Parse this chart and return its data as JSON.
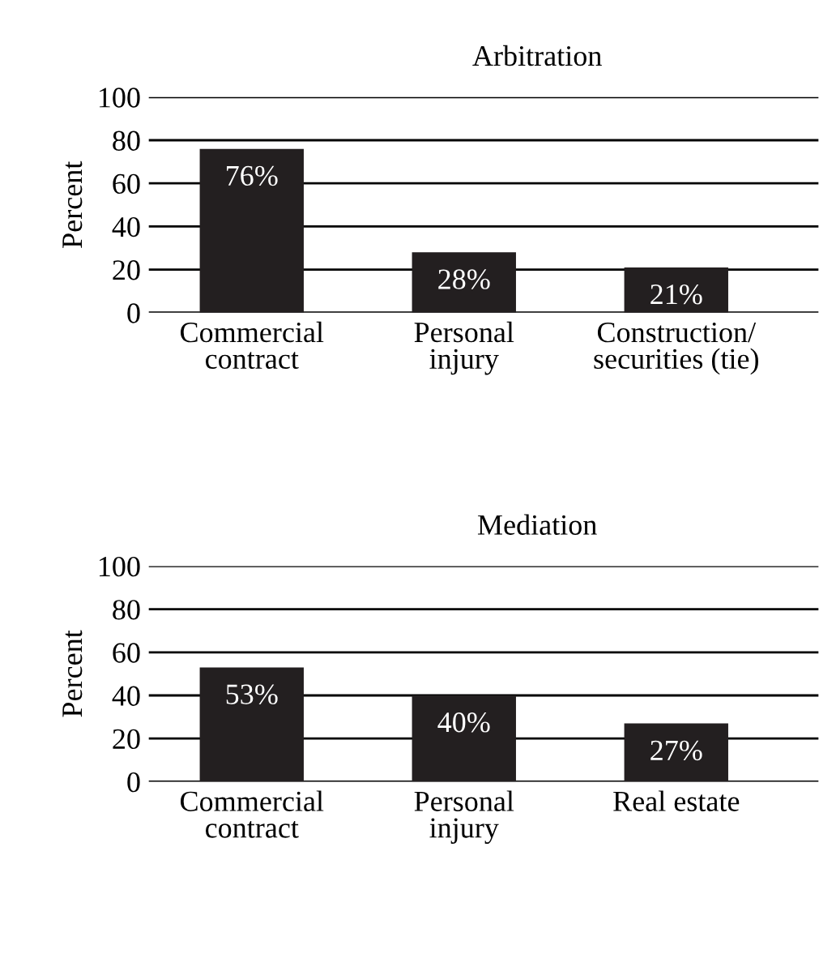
{
  "chart_data": [
    {
      "type": "bar",
      "title": "Arbitration",
      "ylabel": "Percent",
      "categories": [
        "Commercial\ncontract",
        "Personal\ninjury",
        "Construction/\nsecurities (tie)"
      ],
      "values": [
        76,
        28,
        21
      ],
      "value_labels": [
        "76%",
        "28%",
        "21%"
      ],
      "color": "#231f20",
      "ylim": [
        0,
        100
      ],
      "yticks": [
        0,
        20,
        40,
        60,
        80,
        100
      ],
      "grid": "y"
    },
    {
      "type": "bar",
      "title": "Mediation",
      "ylabel": "Percent",
      "categories": [
        "Commercial\ncontract",
        "Personal\ninjury",
        "Real estate"
      ],
      "values": [
        53,
        40,
        27
      ],
      "value_labels": [
        "53%",
        "40%",
        "27%"
      ],
      "color": "#231f20",
      "ylim": [
        0,
        100
      ],
      "yticks": [
        0,
        20,
        40,
        60,
        80,
        100
      ],
      "grid": "y"
    }
  ]
}
